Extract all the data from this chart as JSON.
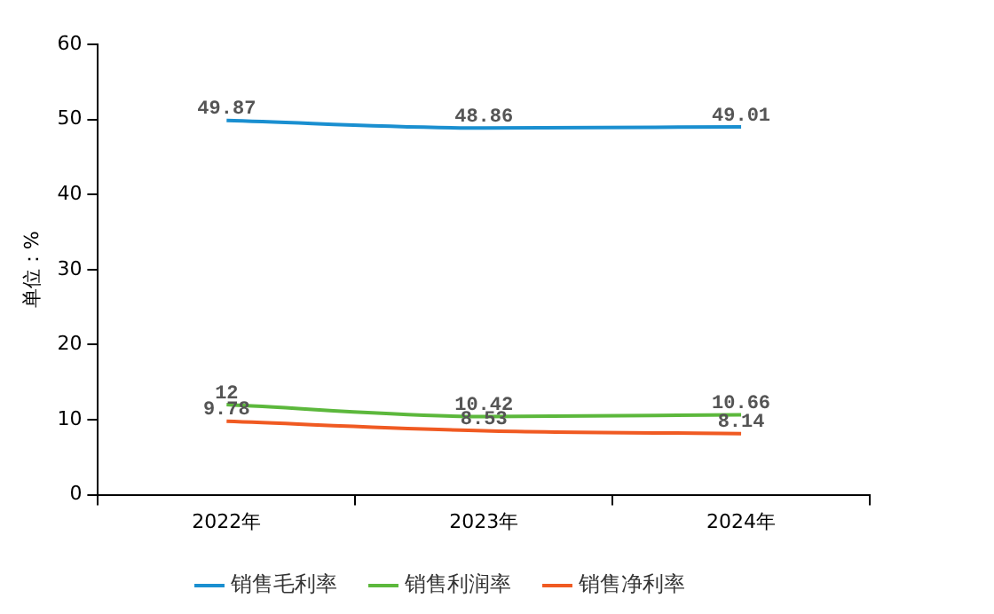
{
  "chart_data": {
    "type": "line",
    "ylabel": "单位：%",
    "categories": [
      "2022年",
      "2023年",
      "2024年"
    ],
    "series": [
      {
        "name": "销售毛利率",
        "color": "#1a8fd0",
        "values": [
          49.87,
          48.86,
          49.01
        ]
      },
      {
        "name": "销售利润率",
        "color": "#5cb83c",
        "values": [
          12,
          10.42,
          10.66
        ]
      },
      {
        "name": "销售净利率",
        "color": "#f05a22",
        "values": [
          9.78,
          8.53,
          8.14
        ]
      }
    ],
    "ylim": [
      0,
      60
    ],
    "yticks": [
      0,
      10,
      20,
      30,
      40,
      50,
      60
    ],
    "grid": false,
    "legend": "bottom",
    "data_labels": true,
    "marker": "none"
  }
}
